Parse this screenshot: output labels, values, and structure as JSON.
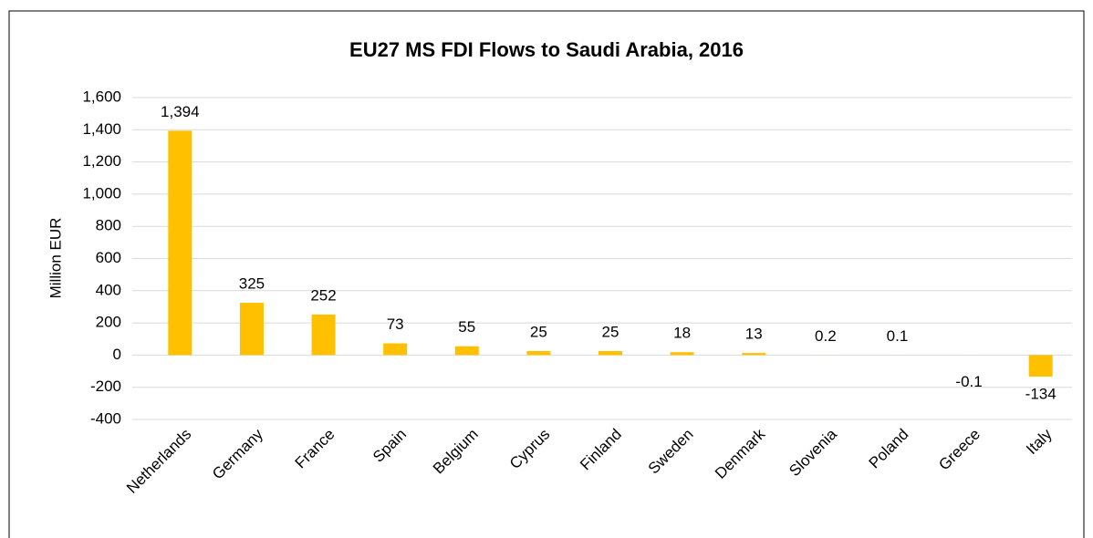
{
  "chart_data": {
    "type": "bar",
    "title": "EU27 MS FDI Flows to Saudi Arabia, 2016",
    "y_axis_label": "Million EUR",
    "categories": [
      "Netherlands",
      "Germany",
      "France",
      "Spain",
      "Belgium",
      "Cyprus",
      "Finland",
      "Sweden",
      "Denmark",
      "Slovenia",
      "Poland",
      "Greece",
      "Italy"
    ],
    "values": [
      1394,
      325,
      252,
      73,
      55,
      25,
      25,
      18,
      13,
      0.2,
      0.1,
      -0.1,
      -134
    ],
    "value_labels": [
      "1,394",
      "325",
      "252",
      "73",
      "55",
      "25",
      "25",
      "18",
      "13",
      "0.2",
      "0.1",
      "-0.1",
      "-134"
    ],
    "color": "#ffc000",
    "ylim": [
      -400,
      1600
    ],
    "yticks": [
      -400,
      -200,
      0,
      200,
      400,
      600,
      800,
      {
        "value": 1000,
        "label": "1,000"
      },
      {
        "value": 1200,
        "label": "1,200"
      },
      {
        "value": 1400,
        "label": "1,400"
      },
      {
        "value": 1600,
        "label": "1,600"
      }
    ],
    "grid": true
  }
}
